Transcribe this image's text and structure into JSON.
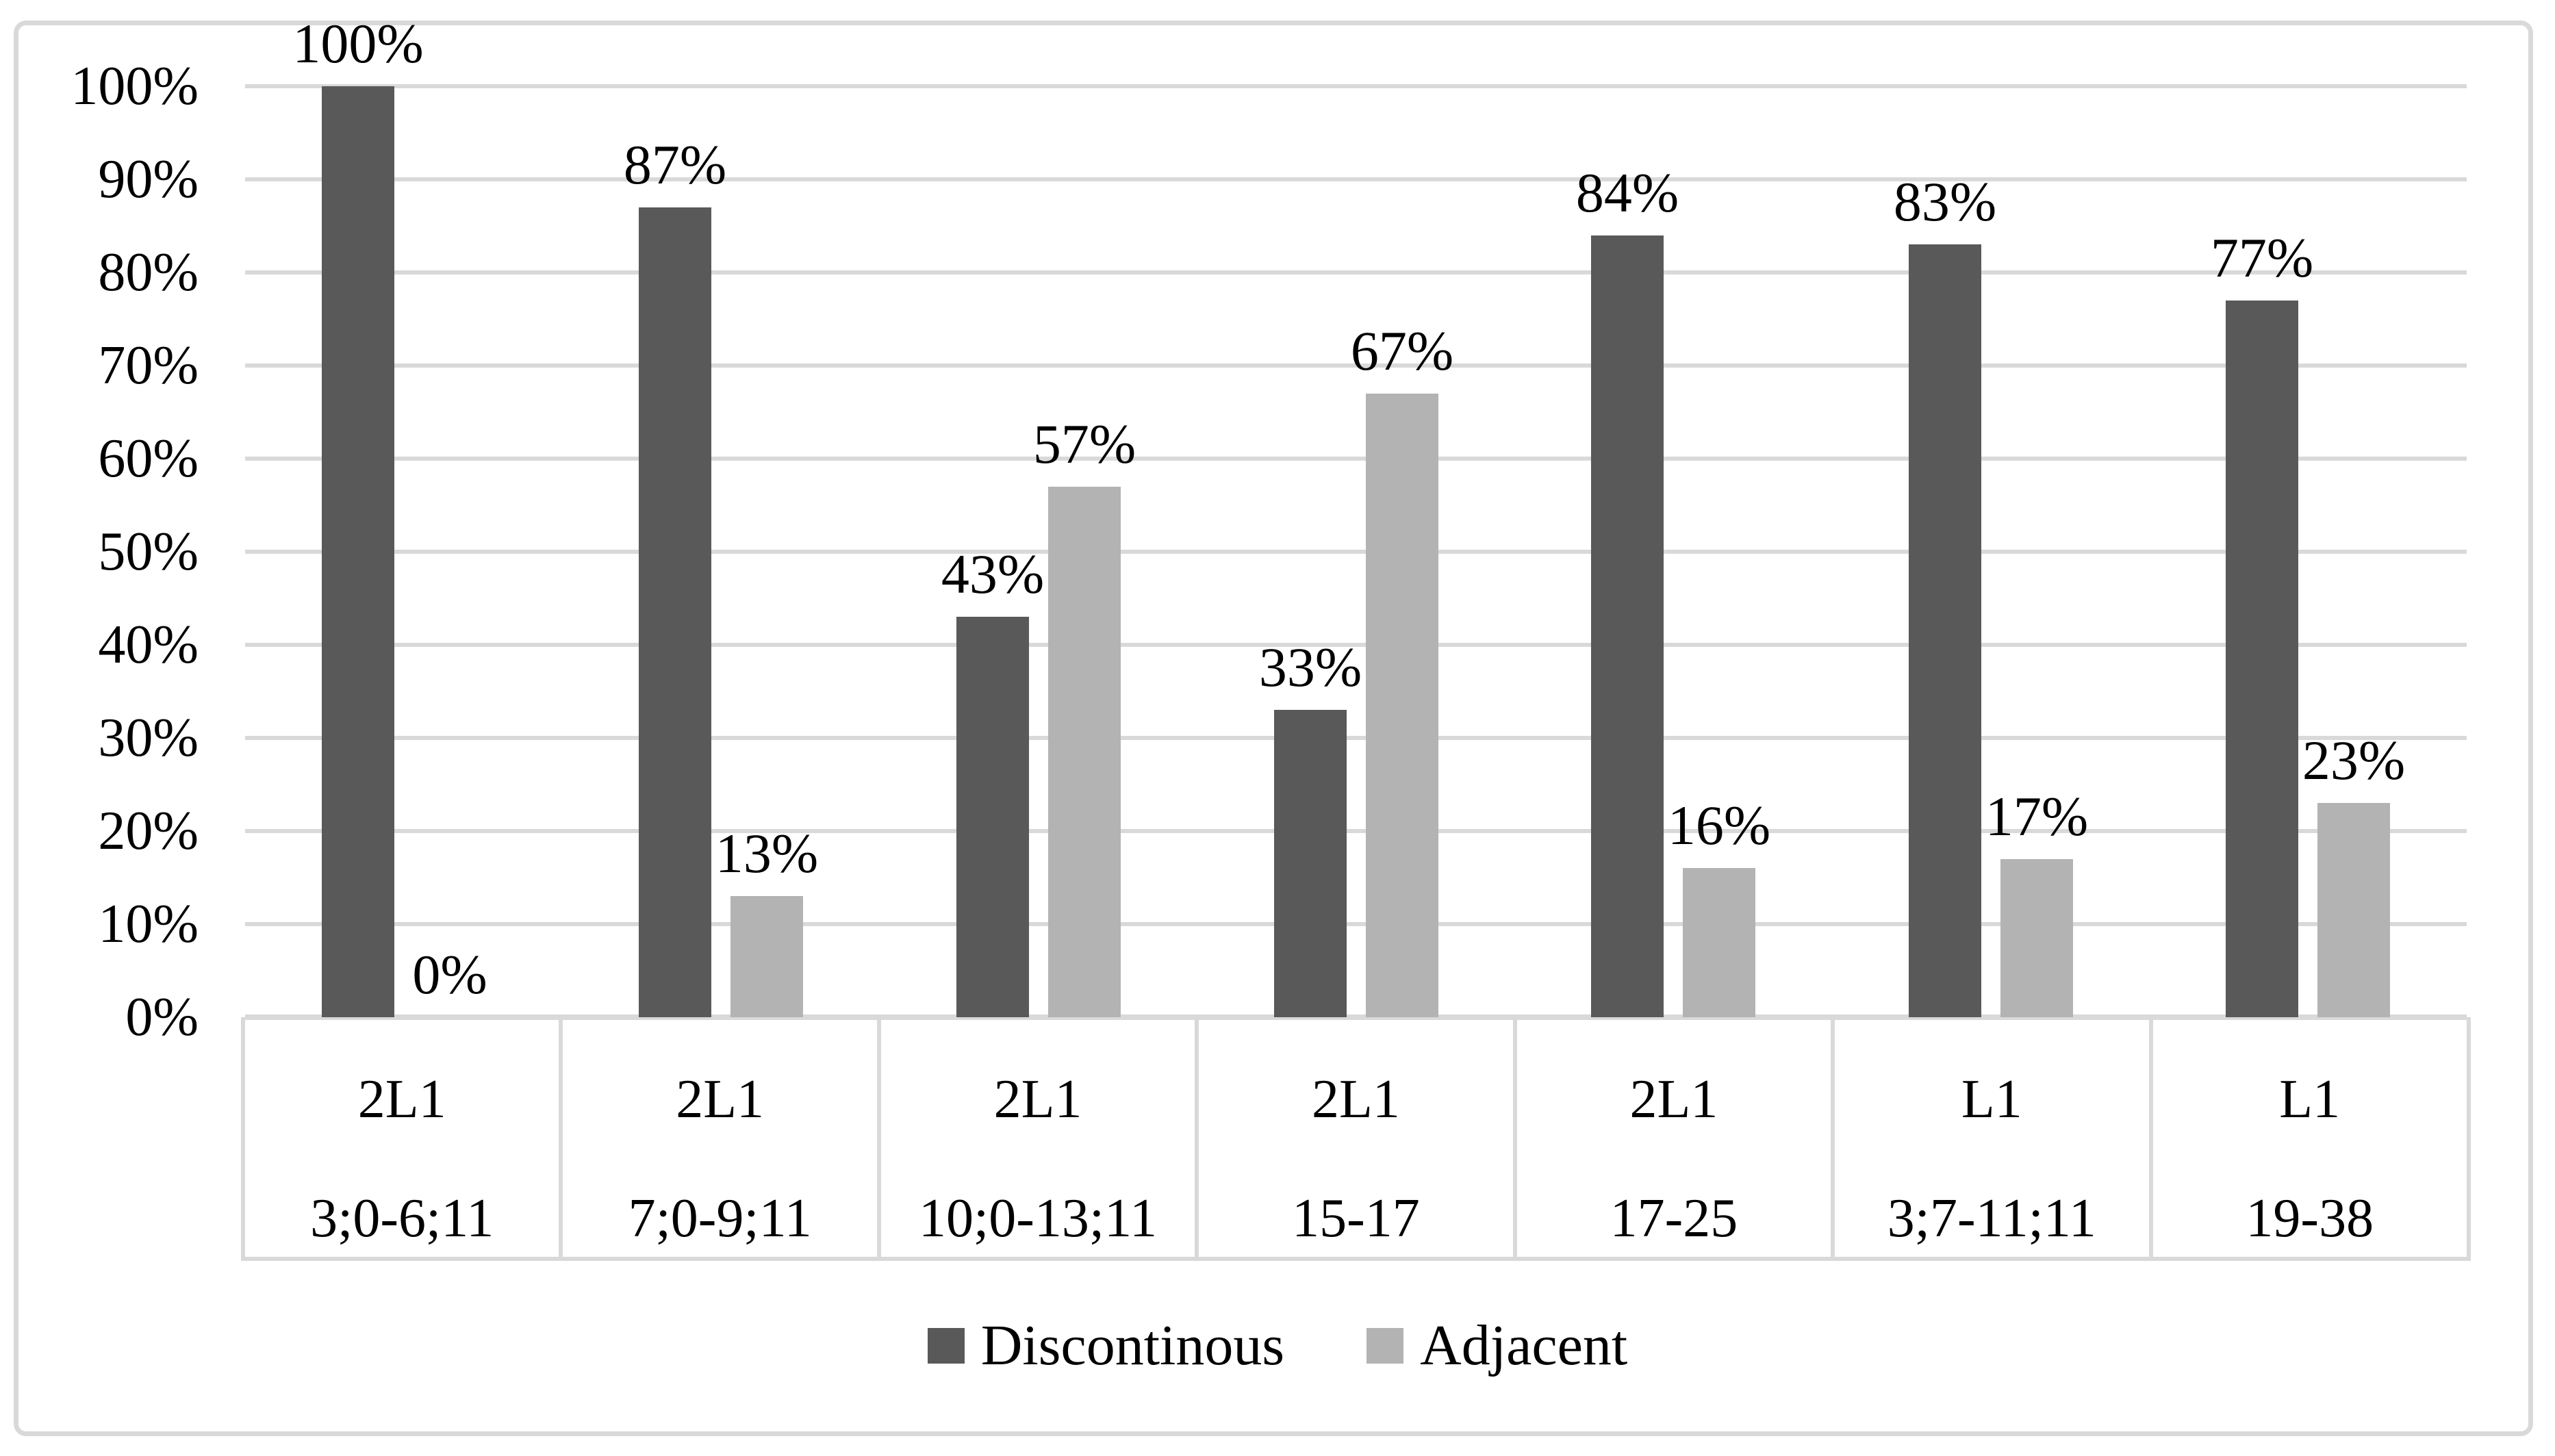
{
  "chart_data": {
    "type": "bar",
    "title": "",
    "xlabel": "",
    "ylabel": "",
    "ylim": [
      0,
      100
    ],
    "grid": true,
    "legend_position": "bottom-center",
    "categories": [
      {
        "top": "2L1",
        "bottom": "3;0-6;11"
      },
      {
        "top": "2L1",
        "bottom": "7;0-9;11"
      },
      {
        "top": "2L1",
        "bottom": "10;0-13;11"
      },
      {
        "top": "2L1",
        "bottom": "15-17"
      },
      {
        "top": "2L1",
        "bottom": "17-25"
      },
      {
        "top": "L1",
        "bottom": "3;7-11;11"
      },
      {
        "top": "L1",
        "bottom": "19-38"
      }
    ],
    "series": [
      {
        "name": "Discontinous",
        "color": "#595959",
        "values": [
          100,
          87,
          43,
          33,
          84,
          83,
          77
        ],
        "labels": [
          "100%",
          "87%",
          "43%",
          "33%",
          "84%",
          "83%",
          "77%"
        ]
      },
      {
        "name": "Adjacent",
        "color": "#b3b3b3",
        "values": [
          0,
          13,
          57,
          67,
          16,
          17,
          23
        ],
        "labels": [
          "0%",
          "13%",
          "57%",
          "67%",
          "16%",
          "17%",
          "23%"
        ]
      }
    ],
    "yticks": [
      {
        "value": 0,
        "label": "0%"
      },
      {
        "value": 10,
        "label": "10%"
      },
      {
        "value": 20,
        "label": "20%"
      },
      {
        "value": 30,
        "label": "30%"
      },
      {
        "value": 40,
        "label": "40%"
      },
      {
        "value": 50,
        "label": "50%"
      },
      {
        "value": 60,
        "label": "60%"
      },
      {
        "value": 70,
        "label": "70%"
      },
      {
        "value": 80,
        "label": "80%"
      },
      {
        "value": 90,
        "label": "90%"
      },
      {
        "value": 100,
        "label": "100%"
      }
    ]
  },
  "style": {
    "background": "#ffffff",
    "frame_border": "#d9d9d9",
    "gridline": "#d9d9d9",
    "axis_line": "#d9d9d9",
    "table_border": "#d9d9d9",
    "text": "#000000",
    "series_dark": "#595959",
    "series_light": "#b3b3b3"
  }
}
